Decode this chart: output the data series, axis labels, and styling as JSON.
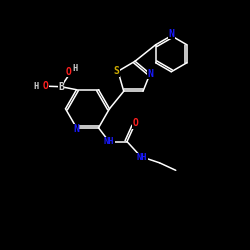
{
  "background_color": "#000000",
  "bond_color": "#ffffff",
  "atom_colors": {
    "N": "#1a1aff",
    "O": "#ff2020",
    "S": "#ccaa00",
    "B": "#d0d0d0",
    "H": "#d0d0d0",
    "C": "#ffffff"
  },
  "figsize": [
    2.5,
    2.5
  ],
  "dpi": 100
}
